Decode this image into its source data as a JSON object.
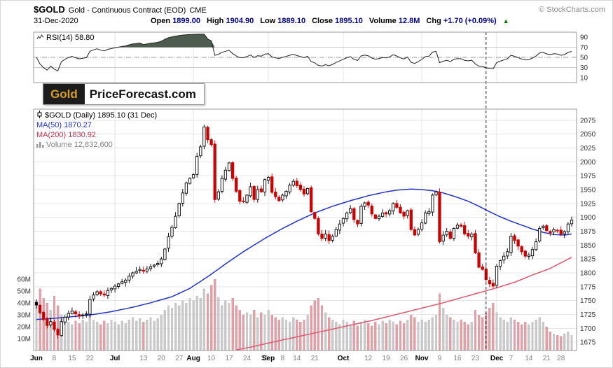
{
  "header": {
    "symbol": "$GOLD",
    "description": "Gold - Continuous Contract (EOD)",
    "exchange": "CME",
    "copyright": "© StockCharts.com",
    "date": "31-Dec-2020",
    "quote": {
      "open_label": "Open",
      "open": "1899.00",
      "high_label": "High",
      "high": "1904.90",
      "low_label": "Low",
      "low": "1889.10",
      "close_label": "Close",
      "close": "1895.10",
      "volume_label": "Volume",
      "volume": "12.8M",
      "chg_label": "Chg",
      "chg": "+1.70 (+0.09%)",
      "chg_arrow": "▲"
    }
  },
  "rsi_panel": {
    "label": "RSI(14) 58.80"
  },
  "watermark": {
    "part1": "Gold",
    "part2": "PriceForecast.com"
  },
  "legend": {
    "main": "$GOLD (Daily) 1895.10 (31 Dec)",
    "ma50": "MA(50) 1870.27",
    "ma200": "MA(200) 1830.92",
    "volume": "Volume 12,832,600"
  },
  "colors": {
    "up_candle": "#000000",
    "down_candle": "#cc0000",
    "ma50": "#2233cc",
    "ma200": "#e05570",
    "volume_up": "#c9c9c9",
    "volume_down": "#dfa0a8",
    "rsi_fill": "#4e5c50",
    "grid": "#e5e5e5",
    "panel_border": "#999999",
    "value_text": "#00008b",
    "gold": "#d79f27"
  },
  "chart_data": {
    "type": "candlestick",
    "title": "$GOLD (Daily) 1895.10 (31 Dec)",
    "price_axis": {
      "min": 1675,
      "max": 2075,
      "step": 25
    },
    "volume_axis": {
      "unit": "M",
      "ticks": [
        60,
        50,
        40,
        30,
        20,
        10
      ]
    },
    "rsi_axis": {
      "ticks": [
        90,
        70,
        50,
        30,
        10
      ],
      "overbought": 70,
      "midline": 50,
      "oversold": 30
    },
    "x_labels": [
      {
        "i": 0,
        "t": "Jun",
        "m": 1
      },
      {
        "i": 5,
        "t": "8"
      },
      {
        "i": 10,
        "t": "15"
      },
      {
        "i": 15,
        "t": "22"
      },
      {
        "i": 22,
        "t": "Jul",
        "m": 1
      },
      {
        "i": 30,
        "t": "13"
      },
      {
        "i": 35,
        "t": "20"
      },
      {
        "i": 40,
        "t": "27"
      },
      {
        "i": 44,
        "t": "Aug",
        "m": 1
      },
      {
        "i": 49,
        "t": "10"
      },
      {
        "i": 54,
        "t": "17"
      },
      {
        "i": 59,
        "t": "24"
      },
      {
        "i": 64,
        "t": "31"
      },
      {
        "i": 65,
        "t": "Sep",
        "m": 1
      },
      {
        "i": 69,
        "t": "8"
      },
      {
        "i": 73,
        "t": "14"
      },
      {
        "i": 78,
        "t": "21"
      },
      {
        "i": 86,
        "t": "Oct",
        "m": 1
      },
      {
        "i": 93,
        "t": "12"
      },
      {
        "i": 98,
        "t": "19"
      },
      {
        "i": 103,
        "t": "26"
      },
      {
        "i": 108,
        "t": "Nov",
        "m": 1
      },
      {
        "i": 113,
        "t": "9"
      },
      {
        "i": 118,
        "t": "16"
      },
      {
        "i": 123,
        "t": "23"
      },
      {
        "i": 129,
        "t": "Dec",
        "m": 1
      },
      {
        "i": 133,
        "t": "7"
      },
      {
        "i": 138,
        "t": "14"
      },
      {
        "i": 143,
        "t": "21"
      },
      {
        "i": 147,
        "t": "28"
      }
    ],
    "month_gridlines": [
      22,
      44,
      65,
      86,
      108,
      129
    ],
    "event_line_idx": 126,
    "close": [
      1742,
      1728,
      1716,
      1705,
      1712,
      1698,
      1688,
      1712,
      1720,
      1727,
      1731,
      1726,
      1722,
      1724,
      1726,
      1752,
      1760,
      1766,
      1762,
      1760,
      1768,
      1772,
      1776,
      1780,
      1784,
      1787,
      1794,
      1800,
      1803,
      1806,
      1803,
      1807,
      1811,
      1814,
      1817,
      1825,
      1843,
      1865,
      1882,
      1902,
      1925,
      1944,
      1962,
      1970,
      1977,
      2010,
      2027,
      2063,
      2040,
      2031,
      1932,
      1946,
      1970,
      1985,
      1998,
      1970,
      1947,
      1929,
      1928,
      1940,
      1955,
      1932,
      1950,
      1946,
      1968,
      1972,
      1945,
      1937,
      1930,
      1940,
      1947,
      1958,
      1965,
      1957,
      1950,
      1942,
      1952,
      1910,
      1898,
      1870,
      1862,
      1870,
      1858,
      1866,
      1878,
      1888,
      1898,
      1908,
      1916,
      1896,
      1888,
      1920,
      1926,
      1922,
      1906,
      1898,
      1902,
      1908,
      1906,
      1912,
      1925,
      1918,
      1908,
      1902,
      1912,
      1878,
      1868,
      1878,
      1890,
      1908,
      1910,
      1940,
      1946,
      1856,
      1868,
      1875,
      1862,
      1880,
      1886,
      1884,
      1870,
      1866,
      1870,
      1836,
      1810,
      1806,
      1788,
      1780,
      1776,
      1812,
      1822,
      1830,
      1838,
      1866,
      1858,
      1848,
      1838,
      1830,
      1832,
      1842,
      1856,
      1880,
      1884,
      1876,
      1872,
      1878,
      1876,
      1870,
      1874,
      1888,
      1895
    ],
    "volume_m": [
      38,
      52,
      44,
      40,
      34,
      46,
      38,
      30,
      26,
      24,
      22,
      25,
      23,
      26,
      24,
      30,
      26,
      24,
      22,
      25,
      23,
      26,
      24,
      22,
      25,
      23,
      26,
      28,
      25,
      27,
      24,
      26,
      28,
      25,
      27,
      30,
      34,
      38,
      36,
      40,
      38,
      42,
      40,
      44,
      42,
      46,
      44,
      52,
      48,
      55,
      60,
      45,
      38,
      42,
      40,
      44,
      38,
      34,
      30,
      32,
      30,
      34,
      28,
      32,
      30,
      34,
      30,
      28,
      26,
      28,
      26,
      24,
      28,
      26,
      24,
      26,
      30,
      38,
      42,
      44,
      38,
      32,
      28,
      26,
      24,
      22,
      26,
      24,
      22,
      25,
      21,
      24,
      26,
      23,
      21,
      24,
      22,
      25,
      23,
      26,
      24,
      22,
      25,
      23,
      26,
      30,
      28,
      24,
      26,
      24,
      26,
      28,
      30,
      48,
      36,
      30,
      28,
      26,
      24,
      26,
      24,
      22,
      24,
      34,
      30,
      28,
      32,
      36,
      40,
      32,
      28,
      26,
      24,
      28,
      26,
      24,
      22,
      24,
      22,
      24,
      26,
      28,
      24,
      20,
      16,
      14,
      13,
      12,
      14,
      16,
      13
    ],
    "ma50_anchors": [
      [
        0,
        1716
      ],
      [
        5,
        1718
      ],
      [
        10,
        1721
      ],
      [
        15,
        1724
      ],
      [
        21,
        1730
      ],
      [
        27,
        1738
      ],
      [
        32,
        1746
      ],
      [
        38,
        1757
      ],
      [
        43,
        1772
      ],
      [
        48,
        1793
      ],
      [
        53,
        1816
      ],
      [
        58,
        1838
      ],
      [
        64,
        1862
      ],
      [
        69,
        1880
      ],
      [
        73,
        1893
      ],
      [
        78,
        1908
      ],
      [
        83,
        1920
      ],
      [
        88,
        1930
      ],
      [
        93,
        1939
      ],
      [
        98,
        1946
      ],
      [
        101,
        1949
      ],
      [
        105,
        1951
      ],
      [
        108,
        1950
      ],
      [
        111,
        1948
      ],
      [
        114,
        1944
      ],
      [
        118,
        1936
      ],
      [
        121,
        1929
      ],
      [
        124,
        1920
      ],
      [
        127,
        1910
      ],
      [
        130,
        1901
      ],
      [
        133,
        1893
      ],
      [
        136,
        1886
      ],
      [
        139,
        1879
      ],
      [
        142,
        1873
      ],
      [
        145,
        1869
      ],
      [
        148,
        1868
      ],
      [
        150,
        1870
      ]
    ],
    "ma200_anchors": [
      [
        56,
        1661
      ],
      [
        60,
        1666
      ],
      [
        64,
        1672
      ],
      [
        69,
        1679
      ],
      [
        74,
        1686
      ],
      [
        79,
        1693
      ],
      [
        84,
        1700
      ],
      [
        89,
        1707
      ],
      [
        94,
        1714
      ],
      [
        99,
        1722
      ],
      [
        104,
        1730
      ],
      [
        109,
        1738
      ],
      [
        114,
        1746
      ],
      [
        119,
        1755
      ],
      [
        124,
        1764
      ],
      [
        129,
        1773
      ],
      [
        134,
        1783
      ],
      [
        139,
        1796
      ],
      [
        144,
        1808
      ],
      [
        147,
        1818
      ],
      [
        150,
        1828
      ]
    ]
  }
}
